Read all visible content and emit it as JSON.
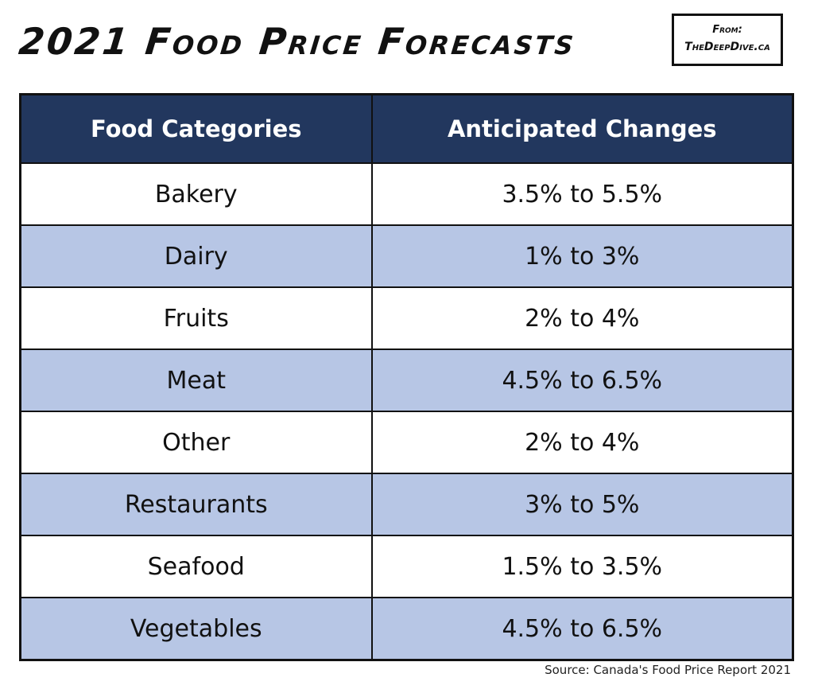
{
  "title": "2021 Food Price Forecasts",
  "source_box": {
    "from": "From:",
    "site": "TheDeepDive.ca"
  },
  "source_note": "Source: Canada's Food Price Report 2021",
  "colors": {
    "header_bg": "#22375e",
    "header_text": "#ffffff",
    "band_row_bg": "#b7c6e5",
    "plain_row_bg": "#ffffff"
  },
  "chart_data": {
    "type": "table",
    "title": "2021 Food Price Forecasts",
    "columns": [
      "Food Categories",
      "Anticipated Changes"
    ],
    "rows": [
      [
        "Bakery",
        "3.5% to 5.5%"
      ],
      [
        "Dairy",
        "1% to 3%"
      ],
      [
        "Fruits",
        "2% to 4%"
      ],
      [
        "Meat",
        "4.5% to 6.5%"
      ],
      [
        "Other",
        "2% to 4%"
      ],
      [
        "Restaurants",
        "3% to 5%"
      ],
      [
        "Seafood",
        "1.5% to 3.5%"
      ],
      [
        "Vegetables",
        "4.5% to 6.5%"
      ]
    ]
  }
}
